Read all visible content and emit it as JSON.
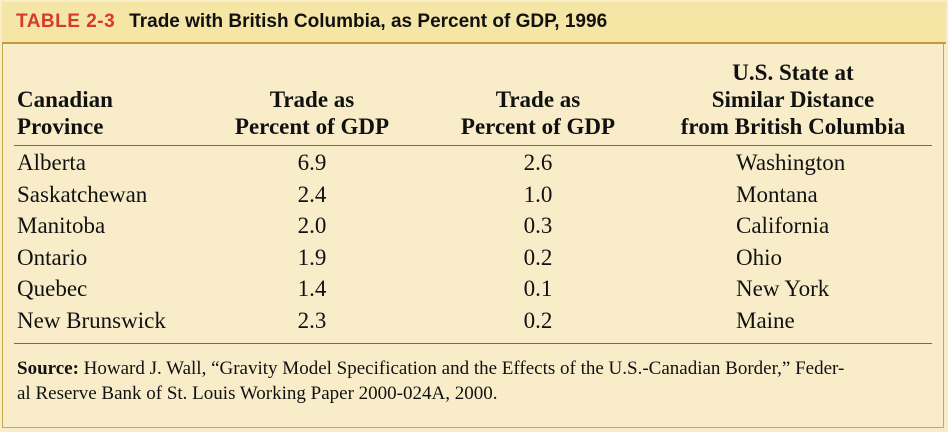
{
  "title": {
    "label": "TABLE 2-3",
    "text": "Trade with British Columbia, as Percent of GDP, 1996"
  },
  "columns": [
    {
      "lines": [
        "Canadian",
        "Province"
      ]
    },
    {
      "lines": [
        "Trade as",
        "Percent of GDP"
      ]
    },
    {
      "lines": [
        "Trade as",
        "Percent of GDP"
      ]
    },
    {
      "lines": [
        "U.S. State at",
        "Similar Distance",
        "from British Columbia"
      ]
    }
  ],
  "rows": [
    {
      "province": "Alberta",
      "trade_pct": "6.9",
      "us_trade_pct": "2.6",
      "state": "Washington"
    },
    {
      "province": "Saskatchewan",
      "trade_pct": "2.4",
      "us_trade_pct": "1.0",
      "state": "Montana"
    },
    {
      "province": "Manitoba",
      "trade_pct": "2.0",
      "us_trade_pct": "0.3",
      "state": "California"
    },
    {
      "province": "Ontario",
      "trade_pct": "1.9",
      "us_trade_pct": "0.2",
      "state": "Ohio"
    },
    {
      "province": "Quebec",
      "trade_pct": "1.4",
      "us_trade_pct": "0.1",
      "state": "New York"
    },
    {
      "province": "New Brunswick",
      "trade_pct": "2.3",
      "us_trade_pct": "0.2",
      "state": "Maine"
    }
  ],
  "source": {
    "label": "Source:",
    "line1": "Howard J. Wall, “Gravity Model Specification and the Effects of the U.S.-Canadian Border,” Feder-",
    "line2": "al Reserve Bank of St. Louis Working Paper 2000-024A, 2000."
  },
  "colors": {
    "background": "#f9edc9",
    "title_bar": "#f6e6a6",
    "table_label": "#d63a2b"
  }
}
